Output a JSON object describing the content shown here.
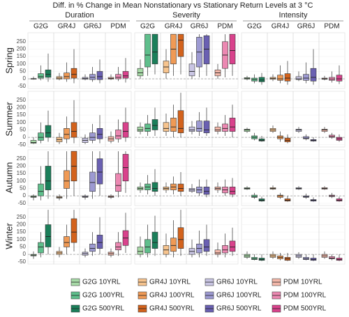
{
  "chart_data": {
    "type": "box",
    "title": "Diff. in % Change in Mean Nonstationary vs Stationary Return Levels at 3 °C",
    "columns": [
      "Duration",
      "Severity",
      "Intensity"
    ],
    "rows": [
      "Spring",
      "Summer",
      "Autumn",
      "Winter"
    ],
    "groups": [
      "G2G",
      "GR4J",
      "GR6J",
      "PDM"
    ],
    "ylim": [
      -65,
      310
    ],
    "yticks": [
      -50,
      0,
      50,
      100,
      150,
      200,
      250
    ],
    "series": [
      {
        "name": "G2G 10YRL",
        "color": "#a8dba8",
        "values": [
          [
            -5,
            -2,
            0,
            2,
            15
          ],
          [
            0,
            20,
            40,
            70,
            130
          ],
          [
            -10,
            -2,
            2,
            8,
            20
          ],
          [
            -45,
            -40,
            -35,
            -20,
            0
          ],
          [
            20,
            40,
            50,
            70,
            100
          ],
          [
            30,
            40,
            50,
            55,
            65
          ],
          [
            -30,
            -10,
            -5,
            0,
            10
          ],
          [
            20,
            40,
            50,
            60,
            90
          ],
          [
            40,
            45,
            50,
            55,
            65
          ],
          [
            -30,
            -10,
            -5,
            0,
            20
          ],
          [
            -20,
            0,
            20,
            50,
            120
          ],
          [
            -30,
            -20,
            -10,
            0,
            20
          ]
        ]
      },
      {
        "name": "G2G 100YRL",
        "color": "#5fbf8c",
        "values": [
          [
            -10,
            5,
            15,
            35,
            90
          ],
          [
            20,
            80,
            160,
            300,
            300
          ],
          [
            -30,
            -15,
            -5,
            5,
            30
          ],
          [
            -40,
            -20,
            0,
            30,
            100
          ],
          [
            10,
            40,
            60,
            90,
            150
          ],
          [
            -20,
            -10,
            0,
            10,
            30
          ],
          [
            -30,
            0,
            30,
            80,
            200
          ],
          [
            10,
            40,
            60,
            80,
            140
          ],
          [
            -20,
            -10,
            -5,
            5,
            20
          ],
          [
            -20,
            10,
            50,
            80,
            150
          ],
          [
            -20,
            10,
            50,
            100,
            200
          ],
          [
            -40,
            -35,
            -30,
            -20,
            0
          ]
        ]
      },
      {
        "name": "G2G 500YRL",
        "color": "#1b7f5a",
        "values": [
          [
            -20,
            10,
            30,
            60,
            170
          ],
          [
            30,
            100,
            180,
            300,
            300
          ],
          [
            -40,
            -20,
            -8,
            10,
            40
          ],
          [
            -30,
            0,
            30,
            80,
            180
          ],
          [
            10,
            50,
            80,
            120,
            200
          ],
          [
            -30,
            -25,
            -20,
            -10,
            10
          ],
          [
            -20,
            40,
            100,
            200,
            300
          ],
          [
            0,
            30,
            50,
            90,
            180
          ],
          [
            -40,
            -35,
            -30,
            -20,
            -5
          ],
          [
            0,
            50,
            120,
            200,
            300
          ],
          [
            -10,
            40,
            80,
            150,
            260
          ],
          [
            -45,
            -40,
            -35,
            -25,
            0
          ]
        ]
      },
      {
        "name": "GR4J 10YRL",
        "color": "#f7c48e",
        "values": [
          [
            -10,
            -2,
            5,
            15,
            40
          ],
          [
            0,
            40,
            80,
            120,
            200
          ],
          [
            -15,
            -3,
            2,
            10,
            30
          ],
          [
            -45,
            -30,
            -15,
            0,
            30
          ],
          [
            10,
            40,
            60,
            100,
            160
          ],
          [
            30,
            40,
            50,
            60,
            80
          ],
          [
            -30,
            -15,
            -10,
            -5,
            10
          ],
          [
            20,
            40,
            50,
            60,
            90
          ],
          [
            40,
            45,
            50,
            55,
            70
          ],
          [
            -20,
            0,
            10,
            20,
            50
          ],
          [
            -20,
            0,
            30,
            60,
            140
          ],
          [
            -30,
            -20,
            -10,
            0,
            20
          ]
        ]
      },
      {
        "name": "GR4J 100YRL",
        "color": "#f09a55",
        "values": [
          [
            -20,
            0,
            15,
            40,
            110
          ],
          [
            20,
            100,
            200,
            300,
            300
          ],
          [
            -30,
            -10,
            0,
            25,
            90
          ],
          [
            -40,
            -10,
            20,
            60,
            140
          ],
          [
            0,
            40,
            70,
            130,
            220
          ],
          [
            -30,
            -10,
            0,
            10,
            40
          ],
          [
            -20,
            50,
            100,
            170,
            300
          ],
          [
            10,
            40,
            60,
            80,
            130
          ],
          [
            -20,
            -10,
            0,
            5,
            20
          ],
          [
            0,
            50,
            80,
            120,
            200
          ],
          [
            -20,
            20,
            60,
            110,
            230
          ],
          [
            -40,
            -30,
            -20,
            -10,
            10
          ]
        ]
      },
      {
        "name": "GR4J 500YRL",
        "color": "#d3621c",
        "values": [
          [
            -30,
            5,
            30,
            70,
            200
          ],
          [
            30,
            150,
            260,
            300,
            300
          ],
          [
            -40,
            -15,
            5,
            35,
            120
          ],
          [
            -40,
            0,
            40,
            100,
            250
          ],
          [
            0,
            30,
            60,
            180,
            300
          ],
          [
            -40,
            -30,
            -20,
            -5,
            20
          ],
          [
            0,
            100,
            200,
            300,
            300
          ],
          [
            0,
            30,
            50,
            80,
            160
          ],
          [
            -40,
            -35,
            -30,
            -20,
            0
          ],
          [
            20,
            80,
            150,
            240,
            300
          ],
          [
            -10,
            40,
            100,
            180,
            300
          ],
          [
            -45,
            -40,
            -30,
            -20,
            10
          ]
        ]
      },
      {
        "name": "GR6J 10YRL",
        "color": "#c9c5e3",
        "values": [
          [
            -10,
            -3,
            2,
            10,
            30
          ],
          [
            0,
            20,
            50,
            100,
            180
          ],
          [
            -15,
            -5,
            0,
            15,
            50
          ],
          [
            -45,
            -35,
            -20,
            -5,
            20
          ],
          [
            20,
            40,
            50,
            70,
            110
          ],
          [
            30,
            40,
            50,
            55,
            70
          ],
          [
            -25,
            -10,
            -5,
            0,
            10
          ],
          [
            20,
            30,
            40,
            50,
            80
          ],
          [
            40,
            45,
            50,
            55,
            65
          ],
          [
            -20,
            -5,
            5,
            15,
            40
          ],
          [
            -20,
            0,
            20,
            40,
            100
          ],
          [
            -30,
            -20,
            -10,
            0,
            15
          ]
        ]
      },
      {
        "name": "GR6J 100YRL",
        "color": "#9d9ad2",
        "values": [
          [
            -20,
            -5,
            10,
            30,
            80
          ],
          [
            10,
            80,
            180,
            280,
            300
          ],
          [
            -30,
            -10,
            5,
            30,
            110
          ],
          [
            -40,
            -20,
            0,
            30,
            90
          ],
          [
            10,
            40,
            60,
            110,
            170
          ],
          [
            -20,
            -10,
            -5,
            5,
            20
          ],
          [
            -20,
            30,
            90,
            160,
            300
          ],
          [
            0,
            20,
            40,
            60,
            110
          ],
          [
            -20,
            -10,
            -5,
            0,
            15
          ],
          [
            -10,
            20,
            40,
            70,
            150
          ],
          [
            -20,
            10,
            40,
            70,
            160
          ],
          [
            -40,
            -35,
            -30,
            -20,
            0
          ]
        ]
      },
      {
        "name": "GR6J 500YRL",
        "color": "#6a60b2",
        "values": [
          [
            -30,
            -5,
            15,
            50,
            130
          ],
          [
            20,
            100,
            200,
            290,
            300
          ],
          [
            -40,
            -15,
            10,
            70,
            200
          ],
          [
            -40,
            -10,
            20,
            60,
            150
          ],
          [
            10,
            30,
            50,
            110,
            200
          ],
          [
            -30,
            -25,
            -20,
            -15,
            0
          ],
          [
            0,
            80,
            160,
            250,
            300
          ],
          [
            -10,
            10,
            30,
            60,
            110
          ],
          [
            -40,
            -35,
            -30,
            -25,
            -10
          ],
          [
            0,
            40,
            80,
            130,
            250
          ],
          [
            -10,
            20,
            50,
            100,
            200
          ],
          [
            -45,
            -40,
            -35,
            -25,
            0
          ]
        ]
      },
      {
        "name": "PDM 10YRL",
        "color": "#f4b8aa",
        "values": [
          [
            -8,
            -2,
            3,
            10,
            30
          ],
          [
            0,
            20,
            40,
            60,
            100
          ],
          [
            -10,
            -3,
            0,
            5,
            20
          ],
          [
            -40,
            -25,
            -10,
            5,
            40
          ],
          [
            20,
            40,
            50,
            70,
            100
          ],
          [
            30,
            40,
            50,
            55,
            70
          ],
          [
            -20,
            -10,
            -5,
            0,
            10
          ],
          [
            20,
            40,
            50,
            60,
            90
          ],
          [
            40,
            45,
            50,
            55,
            65
          ],
          [
            -20,
            -5,
            5,
            15,
            40
          ],
          [
            -20,
            0,
            10,
            30,
            80
          ],
          [
            -30,
            -20,
            -10,
            0,
            20
          ]
        ]
      },
      {
        "name": "PDM 100YRL",
        "color": "#ec88b2",
        "values": [
          [
            -15,
            0,
            10,
            30,
            80
          ],
          [
            10,
            70,
            160,
            250,
            300
          ],
          [
            -25,
            -10,
            -2,
            10,
            50
          ],
          [
            -35,
            -10,
            10,
            50,
            120
          ],
          [
            10,
            40,
            60,
            90,
            150
          ],
          [
            -10,
            0,
            5,
            15,
            30
          ],
          [
            -10,
            30,
            70,
            150,
            300
          ],
          [
            0,
            20,
            40,
            60,
            110
          ],
          [
            -15,
            -5,
            0,
            5,
            20
          ],
          [
            -10,
            30,
            50,
            80,
            150
          ],
          [
            -20,
            10,
            30,
            60,
            140
          ],
          [
            -40,
            -30,
            -25,
            -15,
            0
          ]
        ]
      },
      {
        "name": "PDM 500YRL",
        "color": "#d9428c",
        "values": [
          [
            -25,
            5,
            20,
            50,
            140
          ],
          [
            20,
            100,
            190,
            300,
            300
          ],
          [
            -35,
            -15,
            0,
            25,
            90
          ],
          [
            -30,
            0,
            40,
            100,
            200
          ],
          [
            0,
            40,
            70,
            130,
            220
          ],
          [
            -30,
            -20,
            -10,
            0,
            20
          ],
          [
            20,
            100,
            190,
            280,
            300
          ],
          [
            -10,
            10,
            30,
            60,
            120
          ],
          [
            -40,
            -35,
            -30,
            -20,
            -5
          ],
          [
            10,
            60,
            110,
            160,
            280
          ],
          [
            -10,
            20,
            50,
            90,
            180
          ],
          [
            -45,
            -40,
            -35,
            -25,
            0
          ]
        ]
      }
    ]
  }
}
